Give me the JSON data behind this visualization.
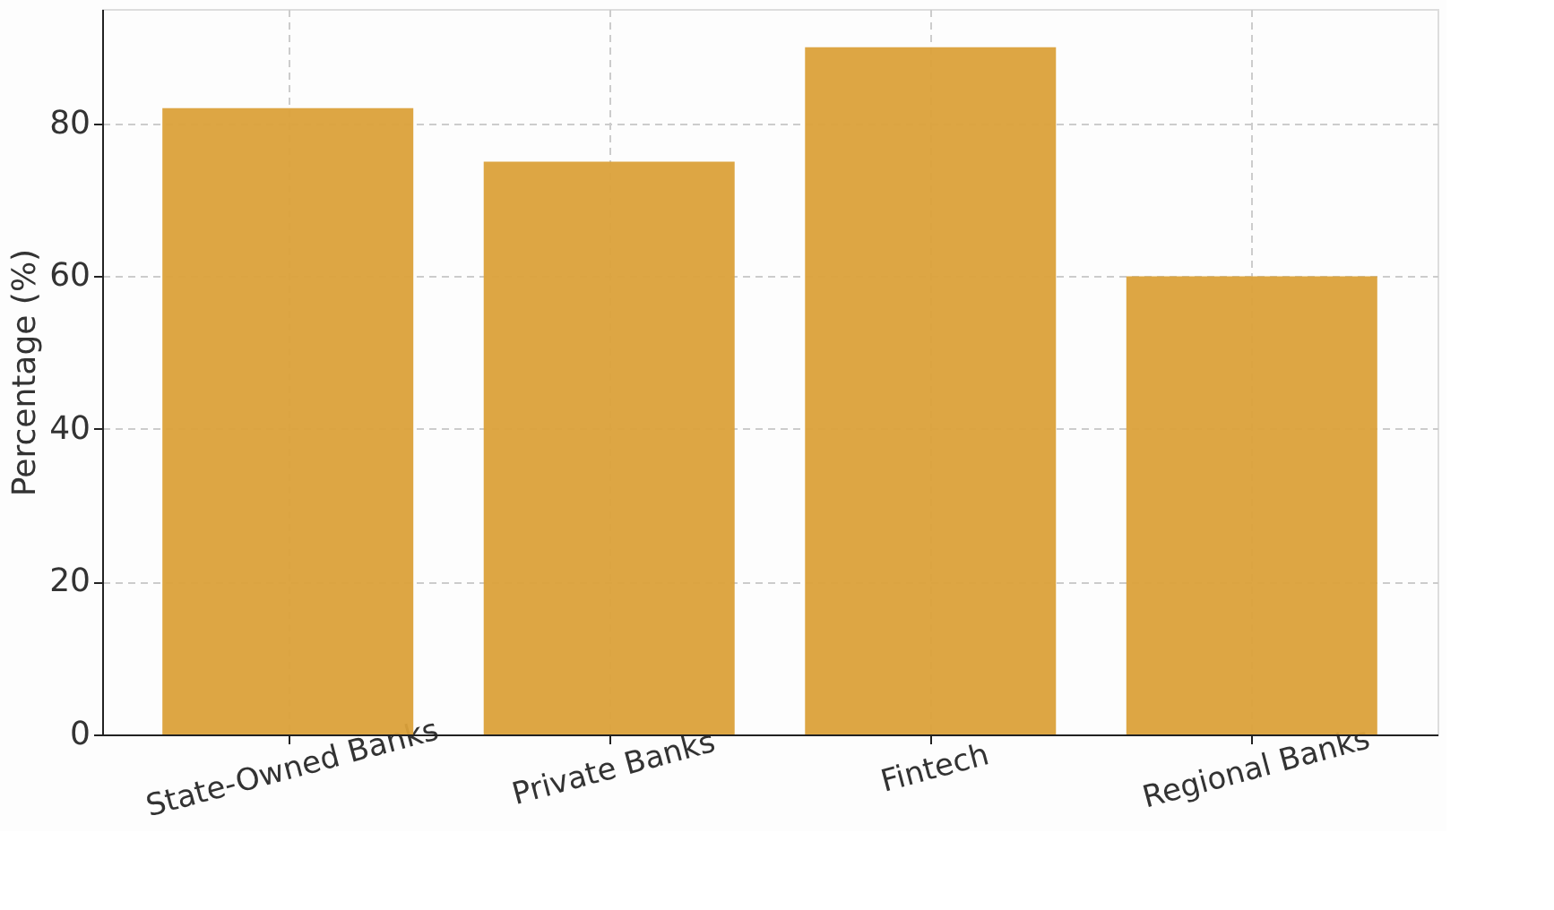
{
  "chart_data": {
    "type": "bar",
    "ylabel": "Percentage (%)",
    "categories": [
      "State-Owned Banks",
      "Private Banks",
      "Fintech",
      "Regional Banks"
    ],
    "values": [
      82,
      75,
      90,
      60
    ],
    "color": "#dba13a",
    "ylim": [
      0,
      95
    ],
    "yticks": [
      0,
      20,
      40,
      60,
      80
    ],
    "grid": true
  }
}
